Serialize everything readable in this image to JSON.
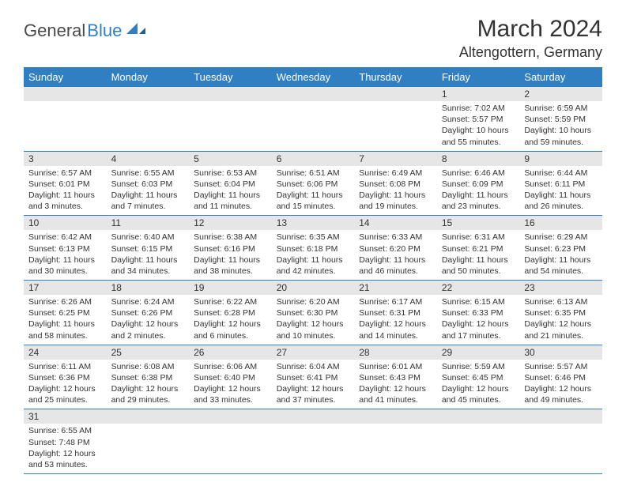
{
  "logo": {
    "text1": "General",
    "text2": "Blue"
  },
  "title": "March 2024",
  "location": "Altengottern, Germany",
  "colors": {
    "header_bg": "#2f7fc2",
    "header_text": "#ffffff",
    "daynum_bg": "#e6e6e6",
    "border": "#2f7fc2",
    "text": "#333333",
    "background": "#ffffff"
  },
  "typography": {
    "title_fontsize": 30,
    "location_fontsize": 18,
    "dayhead_fontsize": 13,
    "daynum_fontsize": 12,
    "body_fontsize": 10.5
  },
  "day_headers": [
    "Sunday",
    "Monday",
    "Tuesday",
    "Wednesday",
    "Thursday",
    "Friday",
    "Saturday"
  ],
  "weeks": [
    [
      null,
      null,
      null,
      null,
      null,
      {
        "n": "1",
        "sunrise": "7:02 AM",
        "sunset": "5:57 PM",
        "daylight": "10 hours and 55 minutes."
      },
      {
        "n": "2",
        "sunrise": "6:59 AM",
        "sunset": "5:59 PM",
        "daylight": "10 hours and 59 minutes."
      }
    ],
    [
      {
        "n": "3",
        "sunrise": "6:57 AM",
        "sunset": "6:01 PM",
        "daylight": "11 hours and 3 minutes."
      },
      {
        "n": "4",
        "sunrise": "6:55 AM",
        "sunset": "6:03 PM",
        "daylight": "11 hours and 7 minutes."
      },
      {
        "n": "5",
        "sunrise": "6:53 AM",
        "sunset": "6:04 PM",
        "daylight": "11 hours and 11 minutes."
      },
      {
        "n": "6",
        "sunrise": "6:51 AM",
        "sunset": "6:06 PM",
        "daylight": "11 hours and 15 minutes."
      },
      {
        "n": "7",
        "sunrise": "6:49 AM",
        "sunset": "6:08 PM",
        "daylight": "11 hours and 19 minutes."
      },
      {
        "n": "8",
        "sunrise": "6:46 AM",
        "sunset": "6:09 PM",
        "daylight": "11 hours and 23 minutes."
      },
      {
        "n": "9",
        "sunrise": "6:44 AM",
        "sunset": "6:11 PM",
        "daylight": "11 hours and 26 minutes."
      }
    ],
    [
      {
        "n": "10",
        "sunrise": "6:42 AM",
        "sunset": "6:13 PM",
        "daylight": "11 hours and 30 minutes."
      },
      {
        "n": "11",
        "sunrise": "6:40 AM",
        "sunset": "6:15 PM",
        "daylight": "11 hours and 34 minutes."
      },
      {
        "n": "12",
        "sunrise": "6:38 AM",
        "sunset": "6:16 PM",
        "daylight": "11 hours and 38 minutes."
      },
      {
        "n": "13",
        "sunrise": "6:35 AM",
        "sunset": "6:18 PM",
        "daylight": "11 hours and 42 minutes."
      },
      {
        "n": "14",
        "sunrise": "6:33 AM",
        "sunset": "6:20 PM",
        "daylight": "11 hours and 46 minutes."
      },
      {
        "n": "15",
        "sunrise": "6:31 AM",
        "sunset": "6:21 PM",
        "daylight": "11 hours and 50 minutes."
      },
      {
        "n": "16",
        "sunrise": "6:29 AM",
        "sunset": "6:23 PM",
        "daylight": "11 hours and 54 minutes."
      }
    ],
    [
      {
        "n": "17",
        "sunrise": "6:26 AM",
        "sunset": "6:25 PM",
        "daylight": "11 hours and 58 minutes."
      },
      {
        "n": "18",
        "sunrise": "6:24 AM",
        "sunset": "6:26 PM",
        "daylight": "12 hours and 2 minutes."
      },
      {
        "n": "19",
        "sunrise": "6:22 AM",
        "sunset": "6:28 PM",
        "daylight": "12 hours and 6 minutes."
      },
      {
        "n": "20",
        "sunrise": "6:20 AM",
        "sunset": "6:30 PM",
        "daylight": "12 hours and 10 minutes."
      },
      {
        "n": "21",
        "sunrise": "6:17 AM",
        "sunset": "6:31 PM",
        "daylight": "12 hours and 14 minutes."
      },
      {
        "n": "22",
        "sunrise": "6:15 AM",
        "sunset": "6:33 PM",
        "daylight": "12 hours and 17 minutes."
      },
      {
        "n": "23",
        "sunrise": "6:13 AM",
        "sunset": "6:35 PM",
        "daylight": "12 hours and 21 minutes."
      }
    ],
    [
      {
        "n": "24",
        "sunrise": "6:11 AM",
        "sunset": "6:36 PM",
        "daylight": "12 hours and 25 minutes."
      },
      {
        "n": "25",
        "sunrise": "6:08 AM",
        "sunset": "6:38 PM",
        "daylight": "12 hours and 29 minutes."
      },
      {
        "n": "26",
        "sunrise": "6:06 AM",
        "sunset": "6:40 PM",
        "daylight": "12 hours and 33 minutes."
      },
      {
        "n": "27",
        "sunrise": "6:04 AM",
        "sunset": "6:41 PM",
        "daylight": "12 hours and 37 minutes."
      },
      {
        "n": "28",
        "sunrise": "6:01 AM",
        "sunset": "6:43 PM",
        "daylight": "12 hours and 41 minutes."
      },
      {
        "n": "29",
        "sunrise": "5:59 AM",
        "sunset": "6:45 PM",
        "daylight": "12 hours and 45 minutes."
      },
      {
        "n": "30",
        "sunrise": "5:57 AM",
        "sunset": "6:46 PM",
        "daylight": "12 hours and 49 minutes."
      }
    ],
    [
      {
        "n": "31",
        "sunrise": "6:55 AM",
        "sunset": "7:48 PM",
        "daylight": "12 hours and 53 minutes."
      },
      null,
      null,
      null,
      null,
      null,
      null
    ]
  ],
  "labels": {
    "sunrise": "Sunrise:",
    "sunset": "Sunset:",
    "daylight": "Daylight:"
  }
}
